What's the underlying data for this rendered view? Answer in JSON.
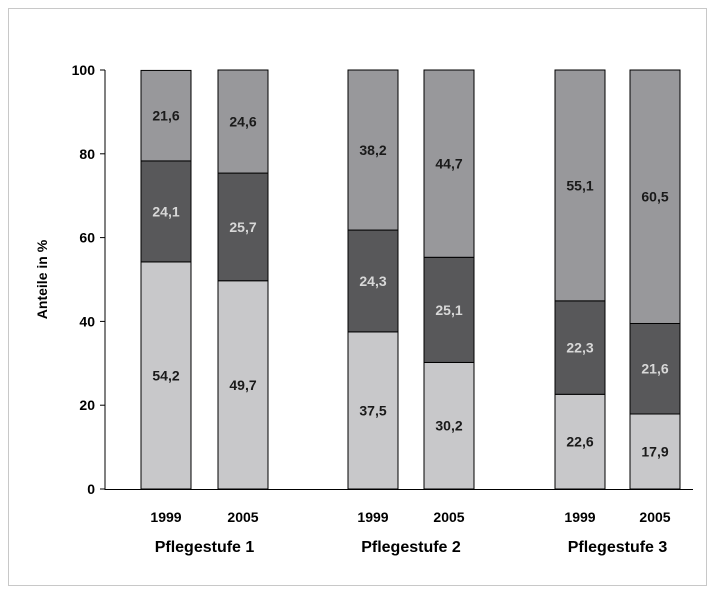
{
  "chart_data": {
    "type": "bar",
    "stacked": true,
    "ylabel": "Anteile in %",
    "ylim": [
      0,
      100
    ],
    "yticks": [
      0,
      20,
      40,
      60,
      80,
      100
    ],
    "groups": [
      {
        "label": "Pflegestufe 1",
        "bars": [
          {
            "x": "1999",
            "values": [
              54.2,
              24.1,
              21.6
            ],
            "labels": [
              "54,2",
              "24,1",
              "21,6"
            ]
          },
          {
            "x": "2005",
            "values": [
              49.7,
              25.7,
              24.6
            ],
            "labels": [
              "49,7",
              "25,7",
              "24,6"
            ]
          }
        ]
      },
      {
        "label": "Pflegestufe 2",
        "bars": [
          {
            "x": "1999",
            "values": [
              37.5,
              24.3,
              38.2
            ],
            "labels": [
              "37,5",
              "24,3",
              "38,2"
            ]
          },
          {
            "x": "2005",
            "values": [
              30.2,
              25.1,
              44.7
            ],
            "labels": [
              "30,2",
              "25,1",
              "44,7"
            ]
          }
        ]
      },
      {
        "label": "Pflegestufe 3",
        "bars": [
          {
            "x": "1999",
            "values": [
              22.6,
              22.3,
              55.1
            ],
            "labels": [
              "22,6",
              "22,3",
              "55,1"
            ]
          },
          {
            "x": "2005",
            "values": [
              17.9,
              21.6,
              60.5
            ],
            "labels": [
              "17,9",
              "21,6",
              "60,5"
            ]
          }
        ]
      }
    ],
    "segment_colors": [
      "#c8c8ca",
      "#58585a",
      "#98989b"
    ],
    "segment_label_colors": [
      "#1a1a1a",
      "#d8d8d8",
      "#1a1a1a"
    ],
    "grid": false,
    "legend": false
  }
}
